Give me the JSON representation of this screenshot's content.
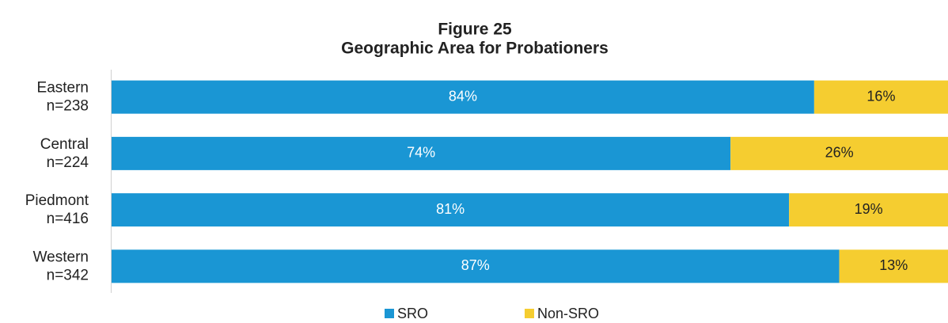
{
  "chart_data": {
    "type": "stacked_barh",
    "title": "Figure 25",
    "subtitle": "Geographic Area for Probationers",
    "categories": [
      "Eastern",
      "Central",
      "Piedmont",
      "Western"
    ],
    "category_notes": [
      "n=238",
      "n=224",
      "n=416",
      "n=342"
    ],
    "xlim": [
      0,
      100
    ],
    "series": [
      {
        "name": "SRO",
        "color": "#1a96d4",
        "label_color": "#ffffff",
        "values": [
          84,
          74,
          81,
          87
        ],
        "value_labels": [
          "84%",
          "74%",
          "81%",
          "87%"
        ]
      },
      {
        "name": "Non-SRO",
        "color": "#f5cd30",
        "label_color": "#222222",
        "values": [
          16,
          26,
          19,
          13
        ],
        "value_labels": [
          "16%",
          "26%",
          "19%",
          "13%"
        ]
      }
    ],
    "legend": "bottom"
  }
}
